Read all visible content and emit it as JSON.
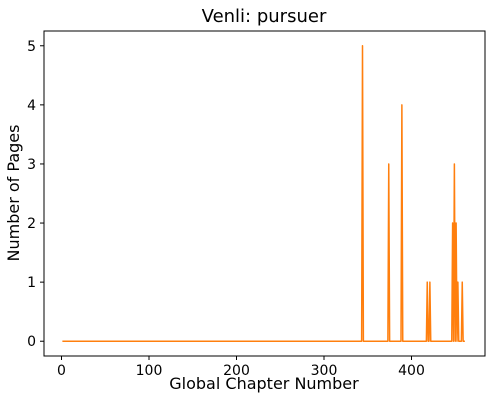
{
  "chart_data": {
    "type": "line",
    "title": "Venli: pursuer",
    "xlabel": "Global Chapter Number",
    "ylabel": "Number of Pages",
    "xlim": [
      -20,
      484
    ],
    "ylim": [
      -0.25,
      5.25
    ],
    "xticks": [
      0,
      100,
      200,
      300,
      400
    ],
    "yticks": [
      0,
      1,
      2,
      3,
      4,
      5
    ],
    "grid": false,
    "line_color": "#ff7f0e",
    "series": [
      {
        "x": [
          1,
          343,
          344,
          345,
          346,
          373,
          374,
          375,
          376,
          388,
          389,
          390,
          391,
          417,
          418,
          419,
          420,
          421,
          422,
          423,
          446,
          447,
          448,
          449,
          450,
          451,
          452,
          453,
          454,
          455,
          456,
          457,
          458,
          459,
          460,
          461
        ],
        "y": [
          0,
          0,
          5,
          0,
          0,
          0,
          3,
          0,
          0,
          0,
          4,
          0,
          0,
          0,
          1,
          0,
          0,
          1,
          0,
          0,
          0,
          2,
          0,
          3,
          0,
          2,
          0,
          1,
          0,
          0,
          0,
          0,
          1,
          0,
          0,
          0
        ]
      }
    ]
  }
}
